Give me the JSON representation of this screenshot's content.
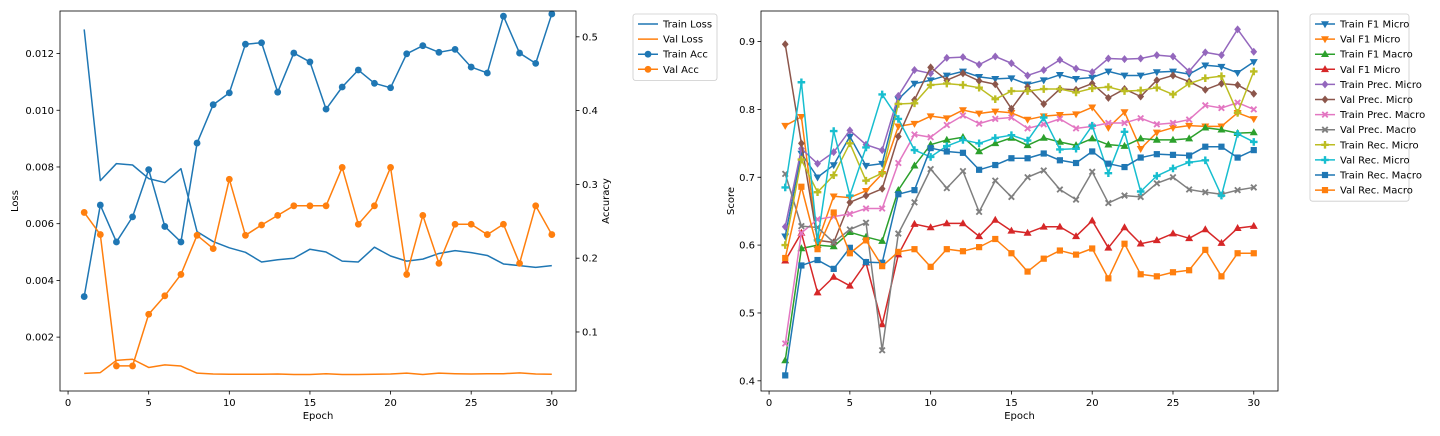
{
  "chart_data": [
    {
      "type": "line",
      "xlabel": "Epoch",
      "ylabel": "Loss",
      "y2label": "Accuracy",
      "xlim": [
        -0.5,
        31.5
      ],
      "ylim": [
        0.0001,
        0.0135
      ],
      "y2lim": [
        0.02,
        0.535
      ],
      "xticks": [
        0,
        5,
        10,
        15,
        20,
        25,
        30
      ],
      "yticks": [
        0.002,
        0.004,
        0.006,
        0.008,
        0.01,
        0.012
      ],
      "ytick_labels": [
        "0.002",
        "0.004",
        "0.006",
        "0.008",
        "0.010",
        "0.012"
      ],
      "y2ticks": [
        0.1,
        0.2,
        0.3,
        0.4,
        0.5
      ],
      "y2tick_labels": [
        "0.1",
        "0.2",
        "0.3",
        "0.4",
        "0.5"
      ],
      "legend_position": "outside-right",
      "x": [
        1,
        2,
        3,
        4,
        5,
        6,
        7,
        8,
        9,
        10,
        11,
        12,
        13,
        14,
        15,
        16,
        17,
        18,
        19,
        20,
        21,
        22,
        23,
        24,
        25,
        26,
        27,
        28,
        29,
        30
      ],
      "series": [
        {
          "name": "Train Loss",
          "axis": "left",
          "color": "#1f77b4",
          "marker": "none",
          "values": [
            0.01285,
            0.00752,
            0.00812,
            0.00807,
            0.00759,
            0.00745,
            0.00794,
            0.00572,
            0.00537,
            0.00515,
            0.00499,
            0.00465,
            0.00473,
            0.00478,
            0.0051,
            0.005,
            0.00468,
            0.00465,
            0.00517,
            0.00486,
            0.00468,
            0.00475,
            0.00495,
            0.00505,
            0.00498,
            0.00488,
            0.00458,
            0.00452,
            0.00446,
            0.00452
          ]
        },
        {
          "name": "Val Loss",
          "axis": "left",
          "color": "#ff7f0e",
          "marker": "none",
          "values": [
            0.00072,
            0.00075,
            0.00118,
            0.00122,
            0.00093,
            0.00102,
            0.00098,
            0.00073,
            0.0007,
            0.00069,
            0.00069,
            0.00069,
            0.0007,
            0.00068,
            0.00068,
            0.00071,
            0.00068,
            0.00068,
            0.00069,
            0.0007,
            0.00073,
            0.00068,
            0.00073,
            0.00071,
            0.0007,
            0.00071,
            0.00071,
            0.00074,
            0.0007,
            0.00069
          ]
        },
        {
          "name": "Train Acc",
          "axis": "right",
          "color": "#1f77b4",
          "marker": "circle",
          "values": [
            0.148,
            0.272,
            0.222,
            0.256,
            0.32,
            0.243,
            0.222,
            0.356,
            0.408,
            0.424,
            0.49,
            0.492,
            0.425,
            0.478,
            0.466,
            0.402,
            0.432,
            0.455,
            0.437,
            0.431,
            0.477,
            0.488,
            0.479,
            0.483,
            0.459,
            0.451,
            0.528,
            0.478,
            0.464,
            0.531
          ]
        },
        {
          "name": "Val Acc",
          "axis": "right",
          "color": "#ff7f0e",
          "marker": "circle",
          "values": [
            0.262,
            0.232,
            0.054,
            0.054,
            0.124,
            0.149,
            0.178,
            0.231,
            0.213,
            0.307,
            0.231,
            0.245,
            0.258,
            0.271,
            0.271,
            0.271,
            0.323,
            0.246,
            0.271,
            0.323,
            0.178,
            0.258,
            0.193,
            0.246,
            0.246,
            0.232,
            0.246,
            0.193,
            0.271,
            0.232
          ]
        }
      ]
    },
    {
      "type": "line",
      "xlabel": "Epoch",
      "ylabel": "Score",
      "xlim": [
        -0.5,
        31.5
      ],
      "ylim": [
        0.385,
        0.945
      ],
      "xticks": [
        0,
        5,
        10,
        15,
        20,
        25,
        30
      ],
      "yticks": [
        0.4,
        0.5,
        0.6,
        0.7,
        0.8,
        0.9
      ],
      "ytick_labels": [
        "0.4",
        "0.5",
        "0.6",
        "0.7",
        "0.8",
        "0.9"
      ],
      "legend_position": "outside-right",
      "x": [
        1,
        2,
        3,
        4,
        5,
        6,
        7,
        8,
        9,
        10,
        11,
        12,
        13,
        14,
        15,
        16,
        17,
        18,
        19,
        20,
        21,
        22,
        23,
        24,
        25,
        26,
        27,
        28,
        29,
        30
      ],
      "series": [
        {
          "name": "Train F1 Micro",
          "color": "#1f77b4",
          "marker": "triangle-down",
          "values": [
            0.613,
            0.735,
            0.7,
            0.718,
            0.76,
            0.717,
            0.72,
            0.815,
            0.838,
            0.843,
            0.85,
            0.856,
            0.848,
            0.845,
            0.846,
            0.837,
            0.843,
            0.851,
            0.845,
            0.847,
            0.856,
            0.85,
            0.85,
            0.855,
            0.856,
            0.852,
            0.865,
            0.863,
            0.854,
            0.87
          ]
        },
        {
          "name": "Val F1 Micro",
          "color": "#ff7f0e",
          "marker": "triangle-down",
          "values": [
            0.776,
            0.789,
            0.604,
            0.672,
            0.67,
            0.68,
            0.705,
            0.775,
            0.779,
            0.79,
            0.787,
            0.799,
            0.794,
            0.797,
            0.795,
            0.785,
            0.79,
            0.792,
            0.793,
            0.803,
            0.773,
            0.796,
            0.742,
            0.766,
            0.773,
            0.776,
            0.775,
            0.775,
            0.795,
            0.786
          ]
        },
        {
          "name": "Train F1 Macro",
          "color": "#2ca02c",
          "marker": "triangle-up",
          "values": [
            0.43,
            0.595,
            0.6,
            0.598,
            0.619,
            0.612,
            0.606,
            0.681,
            0.717,
            0.748,
            0.755,
            0.759,
            0.738,
            0.75,
            0.758,
            0.747,
            0.758,
            0.752,
            0.747,
            0.757,
            0.748,
            0.746,
            0.757,
            0.755,
            0.755,
            0.757,
            0.773,
            0.77,
            0.765,
            0.766
          ]
        },
        {
          "name": "Val F1 Micro",
          "color": "#d62728",
          "marker": "triangle-up",
          "values": [
            0.577,
            0.618,
            0.53,
            0.553,
            0.54,
            0.574,
            0.483,
            0.586,
            0.631,
            0.626,
            0.632,
            0.632,
            0.613,
            0.637,
            0.621,
            0.618,
            0.627,
            0.627,
            0.613,
            0.636,
            0.596,
            0.626,
            0.602,
            0.607,
            0.617,
            0.61,
            0.623,
            0.603,
            0.625,
            0.628
          ]
        },
        {
          "name": "Train Prec. Micro",
          "color": "#9467bd",
          "marker": "diamond",
          "values": [
            0.627,
            0.742,
            0.72,
            0.737,
            0.769,
            0.748,
            0.74,
            0.82,
            0.858,
            0.853,
            0.876,
            0.877,
            0.866,
            0.878,
            0.868,
            0.85,
            0.858,
            0.873,
            0.86,
            0.855,
            0.875,
            0.874,
            0.875,
            0.88,
            0.878,
            0.856,
            0.884,
            0.88,
            0.918,
            0.885
          ]
        },
        {
          "name": "Val Prec. Micro",
          "color": "#8c564b",
          "marker": "diamond",
          "values": [
            0.896,
            0.75,
            0.607,
            0.604,
            0.663,
            0.673,
            0.683,
            0.76,
            0.814,
            0.862,
            0.843,
            0.853,
            0.842,
            0.837,
            0.801,
            0.833,
            0.808,
            0.83,
            0.829,
            0.838,
            0.817,
            0.83,
            0.819,
            0.843,
            0.85,
            0.841,
            0.829,
            0.838,
            0.836,
            0.823
          ]
        },
        {
          "name": "Train Prec. Macro",
          "color": "#e377c2",
          "marker": "x",
          "values": [
            0.455,
            0.618,
            0.638,
            0.642,
            0.646,
            0.654,
            0.654,
            0.721,
            0.763,
            0.759,
            0.777,
            0.791,
            0.779,
            0.786,
            0.788,
            0.772,
            0.778,
            0.786,
            0.772,
            0.775,
            0.78,
            0.78,
            0.787,
            0.778,
            0.78,
            0.785,
            0.806,
            0.802,
            0.81,
            0.8
          ]
        },
        {
          "name": "Val Prec. Macro",
          "color": "#7f7f7f",
          "marker": "x",
          "values": [
            0.705,
            0.628,
            0.626,
            0.604,
            0.623,
            0.633,
            0.445,
            0.617,
            0.663,
            0.712,
            0.684,
            0.709,
            0.649,
            0.695,
            0.671,
            0.7,
            0.71,
            0.682,
            0.667,
            0.708,
            0.662,
            0.673,
            0.671,
            0.691,
            0.7,
            0.682,
            0.678,
            0.675,
            0.681,
            0.685
          ]
        },
        {
          "name": "Train Rec. Micro",
          "color": "#bcbd22",
          "marker": "plus",
          "values": [
            0.6,
            0.726,
            0.678,
            0.703,
            0.75,
            0.695,
            0.706,
            0.808,
            0.809,
            0.836,
            0.838,
            0.836,
            0.832,
            0.815,
            0.827,
            0.827,
            0.83,
            0.83,
            0.825,
            0.831,
            0.833,
            0.827,
            0.828,
            0.832,
            0.822,
            0.838,
            0.846,
            0.849,
            0.795,
            0.856
          ]
        },
        {
          "name": "Val Rec. Micro",
          "color": "#17becf",
          "marker": "plus",
          "values": [
            0.685,
            0.84,
            0.607,
            0.768,
            0.673,
            0.744,
            0.822,
            0.786,
            0.74,
            0.73,
            0.746,
            0.755,
            0.75,
            0.758,
            0.762,
            0.754,
            0.788,
            0.741,
            0.742,
            0.776,
            0.706,
            0.767,
            0.679,
            0.702,
            0.713,
            0.722,
            0.725,
            0.673,
            0.764,
            0.752
          ]
        },
        {
          "name": "Train Rec. Macro",
          "color": "#1f77b4",
          "marker": "square",
          "values": [
            0.408,
            0.57,
            0.578,
            0.565,
            0.596,
            0.575,
            0.574,
            0.675,
            0.681,
            0.743,
            0.738,
            0.736,
            0.711,
            0.718,
            0.728,
            0.728,
            0.735,
            0.725,
            0.721,
            0.738,
            0.72,
            0.715,
            0.729,
            0.734,
            0.733,
            0.732,
            0.745,
            0.745,
            0.729,
            0.74
          ]
        },
        {
          "name": "Val Rec. Macro",
          "color": "#ff7f0e",
          "marker": "square",
          "values": [
            0.581,
            0.686,
            0.594,
            0.648,
            0.588,
            0.607,
            0.569,
            0.59,
            0.594,
            0.568,
            0.594,
            0.591,
            0.597,
            0.609,
            0.588,
            0.561,
            0.58,
            0.592,
            0.586,
            0.595,
            0.551,
            0.602,
            0.557,
            0.554,
            0.56,
            0.563,
            0.593,
            0.554,
            0.588,
            0.588
          ]
        }
      ]
    }
  ]
}
